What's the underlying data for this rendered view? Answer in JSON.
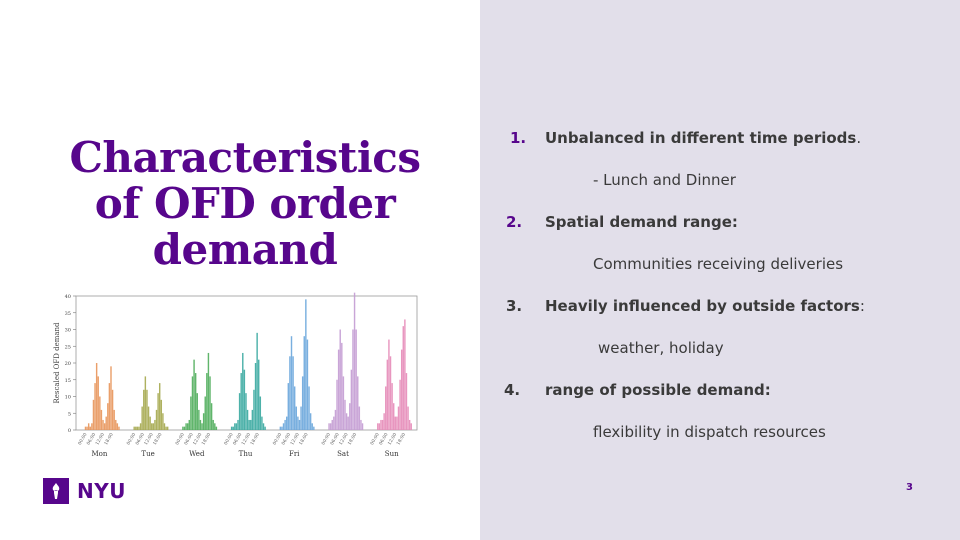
{
  "slide": {
    "title": "Characteristics of OFD order demand",
    "page_number": "3",
    "logo_text": "NYU"
  },
  "list": [
    {
      "number": "1.",
      "heading": "Unbalanced in different time periods",
      "suffix": ".",
      "detail": "- Lunch and Dinner"
    },
    {
      "number": "2.",
      "heading": "Spatial demand range:",
      "suffix": "",
      "detail": "Communities receiving deliveries"
    },
    {
      "number": "3.",
      "heading": "Heavily influenced by outside factors",
      "suffix": ":",
      "detail": "weather, holiday"
    },
    {
      "number": "4.",
      "heading": "range of possible demand:",
      "suffix": "",
      "detail": "flexibility in dispatch resources"
    }
  ],
  "chart_data": {
    "type": "bar",
    "ylabel": "Rescaled OFD demand",
    "ylim": [
      0,
      40
    ],
    "yticks": [
      0,
      5,
      10,
      15,
      20,
      25,
      30,
      35,
      40
    ],
    "xticks": [
      "00:00",
      "06:00",
      "12:00",
      "18:00"
    ],
    "series": [
      {
        "name": "Mon",
        "color": "#e8955a",
        "values": [
          1,
          1,
          2,
          1,
          2,
          9,
          14,
          20,
          16,
          10,
          6,
          3,
          2,
          4,
          8,
          14,
          19,
          12,
          6,
          3,
          2,
          1
        ]
      },
      {
        "name": "Tue",
        "color": "#a5a84e",
        "values": [
          1,
          1,
          1,
          1,
          2,
          7,
          12,
          16,
          12,
          7,
          4,
          2,
          2,
          3,
          6,
          11,
          14,
          9,
          5,
          2,
          1,
          1
        ]
      },
      {
        "name": "Wed",
        "color": "#4fad5b",
        "values": [
          1,
          1,
          2,
          2,
          3,
          10,
          16,
          21,
          17,
          11,
          6,
          3,
          2,
          5,
          10,
          17,
          23,
          16,
          8,
          3,
          2,
          1
        ]
      },
      {
        "name": "Thu",
        "color": "#39a9a0",
        "values": [
          1,
          1,
          2,
          2,
          3,
          11,
          17,
          23,
          18,
          11,
          6,
          3,
          3,
          6,
          12,
          20,
          29,
          21,
          10,
          4,
          2,
          1
        ]
      },
      {
        "name": "Fri",
        "color": "#6aa6dc",
        "values": [
          1,
          1,
          2,
          3,
          4,
          14,
          22,
          28,
          22,
          13,
          7,
          4,
          3,
          7,
          16,
          28,
          39,
          27,
          13,
          5,
          2,
          1
        ]
      },
      {
        "name": "Sat",
        "color": "#c39bd3",
        "values": [
          2,
          2,
          3,
          4,
          6,
          15,
          24,
          30,
          26,
          16,
          9,
          5,
          4,
          8,
          18,
          30,
          41,
          30,
          16,
          7,
          3,
          2
        ]
      },
      {
        "name": "Sun",
        "color": "#e58bb8",
        "values": [
          2,
          2,
          3,
          3,
          5,
          13,
          21,
          27,
          22,
          14,
          8,
          4,
          4,
          7,
          15,
          24,
          31,
          33,
          17,
          7,
          3,
          2
        ]
      }
    ]
  }
}
